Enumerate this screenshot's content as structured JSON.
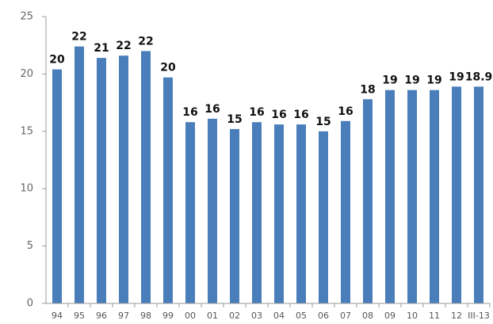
{
  "chart_data": {
    "type": "bar",
    "categories": [
      "94",
      "95",
      "96",
      "97",
      "98",
      "99",
      "00",
      "01",
      "02",
      "03",
      "04",
      "05",
      "06",
      "07",
      "08",
      "09",
      "10",
      "11",
      "12",
      "III-13"
    ],
    "values": [
      20.4,
      22.4,
      21.4,
      21.6,
      22.0,
      19.7,
      15.8,
      16.1,
      15.2,
      15.8,
      15.6,
      15.6,
      15.0,
      15.9,
      17.8,
      18.6,
      18.6,
      18.6,
      18.9,
      18.9
    ],
    "value_labels": [
      "20",
      "22",
      "21",
      "22",
      "22",
      "20",
      "16",
      "16",
      "15",
      "16",
      "16",
      "16",
      "15",
      "16",
      "18",
      "19",
      "19",
      "19",
      "19",
      "18.9"
    ],
    "color": "#4a7ebb",
    "ylim": [
      0,
      25
    ],
    "yticks": [
      0,
      5,
      10,
      15,
      20,
      25
    ],
    "grid": false
  }
}
